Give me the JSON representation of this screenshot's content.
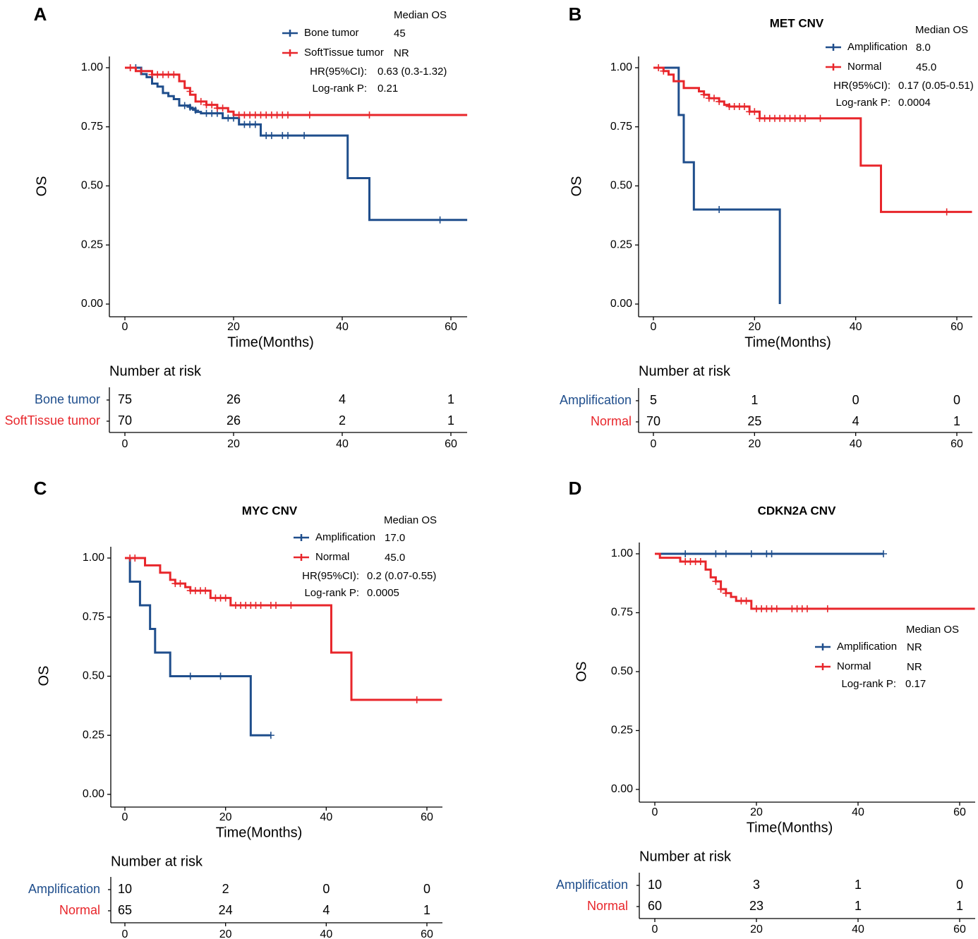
{
  "figure": {
    "colors": {
      "blue": "#1f4e8c",
      "red": "#e8262b",
      "axis": "#000000"
    },
    "common": {
      "xlabel": "Time(Months)",
      "ylabel": "OS",
      "risk_title": "Number at risk",
      "median_header": "Median OS",
      "hr_label": "HR(95%CI):",
      "p_label": "Log-rank P:"
    }
  },
  "chart_data": [
    {
      "panel": "A",
      "type": "line",
      "title": "",
      "xlabel": "Time(Months)",
      "ylabel": "OS",
      "xlim": [
        0,
        63
      ],
      "ylim": [
        0,
        1
      ],
      "xticks": [
        0,
        20,
        40,
        60
      ],
      "yticks": [
        "0.00",
        "0.25",
        "0.50",
        "0.75",
        "1.00"
      ],
      "median_header": "Median OS",
      "hr": "0.63 (0.3-1.32)",
      "p": "0.21",
      "series": [
        {
          "name": "Bone tumor",
          "color": "blue",
          "median": "45",
          "steps": [
            [
              0,
              1
            ],
            [
              3,
              0.973
            ],
            [
              4,
              0.96
            ],
            [
              5,
              0.933
            ],
            [
              6,
              0.92
            ],
            [
              7,
              0.893
            ],
            [
              8,
              0.88
            ],
            [
              9,
              0.867
            ],
            [
              10,
              0.84
            ],
            [
              12,
              0.827
            ],
            [
              13,
              0.813
            ],
            [
              14,
              0.807
            ],
            [
              18,
              0.787
            ],
            [
              21,
              0.76
            ],
            [
              25,
              0.713
            ],
            [
              41,
              0.533
            ],
            [
              45,
              0.356
            ],
            [
              63,
              0.356
            ]
          ],
          "censors": [
            [
              1,
              1
            ],
            [
              2,
              1
            ],
            [
              11,
              0.84
            ],
            [
              12,
              0.833
            ],
            [
              13,
              0.82
            ],
            [
              15,
              0.807
            ],
            [
              16,
              0.807
            ],
            [
              17,
              0.807
            ],
            [
              19,
              0.787
            ],
            [
              20,
              0.787
            ],
            [
              22,
              0.76
            ],
            [
              23,
              0.76
            ],
            [
              24,
              0.76
            ],
            [
              26,
              0.713
            ],
            [
              27,
              0.713
            ],
            [
              29,
              0.713
            ],
            [
              30,
              0.713
            ],
            [
              33,
              0.713
            ],
            [
              58,
              0.356
            ]
          ],
          "risk": [
            "75",
            "26",
            "4",
            "1"
          ]
        },
        {
          "name": "SoftTissue tumor",
          "color": "red",
          "median": "NR",
          "steps": [
            [
              0,
              1
            ],
            [
              2,
              0.986
            ],
            [
              5,
              0.971
            ],
            [
              10,
              0.943
            ],
            [
              11,
              0.914
            ],
            [
              12,
              0.886
            ],
            [
              13,
              0.857
            ],
            [
              15,
              0.843
            ],
            [
              17,
              0.829
            ],
            [
              19,
              0.814
            ],
            [
              20,
              0.8
            ],
            [
              63,
              0.8
            ]
          ],
          "censors": [
            [
              1,
              1
            ],
            [
              3,
              0.986
            ],
            [
              5,
              0.971
            ],
            [
              6,
              0.971
            ],
            [
              7,
              0.971
            ],
            [
              8,
              0.971
            ],
            [
              9,
              0.971
            ],
            [
              12,
              0.9
            ],
            [
              14,
              0.857
            ],
            [
              15,
              0.843
            ],
            [
              16,
              0.843
            ],
            [
              17,
              0.829
            ],
            [
              18,
              0.829
            ],
            [
              21,
              0.8
            ],
            [
              22,
              0.8
            ],
            [
              23,
              0.8
            ],
            [
              24,
              0.8
            ],
            [
              25,
              0.8
            ],
            [
              26,
              0.8
            ],
            [
              27,
              0.8
            ],
            [
              28,
              0.8
            ],
            [
              29,
              0.8
            ],
            [
              30,
              0.8
            ],
            [
              34,
              0.8
            ],
            [
              45,
              0.8
            ]
          ],
          "risk": [
            "70",
            "26",
            "2",
            "1"
          ]
        }
      ]
    },
    {
      "panel": "B",
      "type": "line",
      "title": "MET CNV",
      "xlabel": "Time(Months)",
      "ylabel": "OS",
      "xlim": [
        0,
        63
      ],
      "ylim": [
        0,
        1
      ],
      "xticks": [
        0,
        20,
        40,
        60
      ],
      "yticks": [
        "0.00",
        "0.25",
        "0.50",
        "0.75",
        "1.00"
      ],
      "median_header": "Median OS",
      "hr": "0.17 (0.05-0.51)",
      "p": "0.0004",
      "series": [
        {
          "name": "Amplification",
          "color": "blue",
          "median": "8.0",
          "steps": [
            [
              0,
              1
            ],
            [
              5,
              0.8
            ],
            [
              6,
              0.6
            ],
            [
              8,
              0.4
            ],
            [
              25,
              0.4
            ],
            [
              25,
              0
            ]
          ],
          "censors": [
            [
              13,
              0.4
            ]
          ],
          "risk": [
            "5",
            "1",
            "0",
            "0"
          ]
        },
        {
          "name": "Normal",
          "color": "red",
          "median": "45.0",
          "steps": [
            [
              0,
              1
            ],
            [
              2,
              0.986
            ],
            [
              3,
              0.971
            ],
            [
              4,
              0.943
            ],
            [
              6,
              0.914
            ],
            [
              9,
              0.9
            ],
            [
              10,
              0.886
            ],
            [
              11,
              0.871
            ],
            [
              13,
              0.857
            ],
            [
              14,
              0.843
            ],
            [
              15,
              0.836
            ],
            [
              19,
              0.814
            ],
            [
              21,
              0.786
            ],
            [
              41,
              0.586
            ],
            [
              45,
              0.39
            ],
            [
              63,
              0.39
            ]
          ],
          "censors": [
            [
              1,
              1
            ],
            [
              2,
              0.986
            ],
            [
              10,
              0.886
            ],
            [
              11,
              0.871
            ],
            [
              12,
              0.871
            ],
            [
              13,
              0.857
            ],
            [
              15,
              0.836
            ],
            [
              16,
              0.836
            ],
            [
              17,
              0.836
            ],
            [
              18,
              0.836
            ],
            [
              19,
              0.814
            ],
            [
              20,
              0.814
            ],
            [
              21,
              0.786
            ],
            [
              22,
              0.786
            ],
            [
              23,
              0.786
            ],
            [
              24,
              0.786
            ],
            [
              25,
              0.786
            ],
            [
              26,
              0.786
            ],
            [
              27,
              0.786
            ],
            [
              28,
              0.786
            ],
            [
              29,
              0.786
            ],
            [
              30,
              0.786
            ],
            [
              33,
              0.786
            ],
            [
              58,
              0.39
            ]
          ],
          "risk": [
            "70",
            "25",
            "4",
            "1"
          ]
        }
      ]
    },
    {
      "panel": "C",
      "type": "line",
      "title": "MYC CNV",
      "xlabel": "Time(Months)",
      "ylabel": "OS",
      "xlim": [
        0,
        63
      ],
      "ylim": [
        0,
        1
      ],
      "xticks": [
        0,
        20,
        40,
        60
      ],
      "yticks": [
        "0.00",
        "0.25",
        "0.50",
        "0.75",
        "1.00"
      ],
      "median_header": "Median OS",
      "hr": "0.2 (0.07-0.55)",
      "p": "0.0005",
      "series": [
        {
          "name": "Amplification",
          "color": "blue",
          "median": "17.0",
          "steps": [
            [
              0,
              1
            ],
            [
              1,
              0.9
            ],
            [
              3,
              0.8
            ],
            [
              5,
              0.7
            ],
            [
              6,
              0.6
            ],
            [
              9,
              0.5
            ],
            [
              25,
              0.25
            ],
            [
              29,
              0.25
            ]
          ],
          "censors": [
            [
              13,
              0.5
            ],
            [
              19,
              0.5
            ],
            [
              29,
              0.25
            ]
          ],
          "risk": [
            "10",
            "2",
            "0",
            "0"
          ]
        },
        {
          "name": "Normal",
          "color": "red",
          "median": "45.0",
          "steps": [
            [
              0,
              1
            ],
            [
              4,
              0.969
            ],
            [
              7,
              0.938
            ],
            [
              9,
              0.908
            ],
            [
              10,
              0.892
            ],
            [
              12,
              0.877
            ],
            [
              13,
              0.862
            ],
            [
              17,
              0.831
            ],
            [
              21,
              0.8
            ],
            [
              41,
              0.6
            ],
            [
              45,
              0.4
            ],
            [
              63,
              0.4
            ]
          ],
          "censors": [
            [
              1,
              1
            ],
            [
              2,
              1
            ],
            [
              10,
              0.892
            ],
            [
              11,
              0.892
            ],
            [
              13,
              0.862
            ],
            [
              14,
              0.862
            ],
            [
              15,
              0.862
            ],
            [
              16,
              0.862
            ],
            [
              18,
              0.831
            ],
            [
              19,
              0.831
            ],
            [
              20,
              0.831
            ],
            [
              22,
              0.8
            ],
            [
              23,
              0.8
            ],
            [
              24,
              0.8
            ],
            [
              25,
              0.8
            ],
            [
              26,
              0.8
            ],
            [
              27,
              0.8
            ],
            [
              29,
              0.8
            ],
            [
              30,
              0.8
            ],
            [
              33,
              0.8
            ],
            [
              58,
              0.4
            ]
          ],
          "risk": [
            "65",
            "24",
            "4",
            "1"
          ]
        }
      ]
    },
    {
      "panel": "D",
      "type": "line",
      "title": "CDKN2A CNV",
      "xlabel": "Time(Months)",
      "ylabel": "OS",
      "xlim": [
        0,
        63
      ],
      "ylim": [
        0,
        1
      ],
      "xticks": [
        0,
        20,
        40,
        60
      ],
      "yticks": [
        "0.00",
        "0.25",
        "0.50",
        "0.75",
        "1.00"
      ],
      "median_header": "Median OS",
      "hr": "",
      "p": "0.17",
      "series": [
        {
          "name": "Amplification",
          "color": "blue",
          "median": "NR",
          "steps": [
            [
              0,
              1
            ],
            [
              45,
              1
            ]
          ],
          "censors": [
            [
              6,
              1
            ],
            [
              12,
              1
            ],
            [
              14,
              1
            ],
            [
              19,
              1
            ],
            [
              22,
              1
            ],
            [
              23,
              1
            ],
            [
              45,
              1
            ]
          ],
          "risk": [
            "10",
            "3",
            "1",
            "0"
          ]
        },
        {
          "name": "Normal",
          "color": "red",
          "median": "NR",
          "steps": [
            [
              0,
              1
            ],
            [
              1,
              0.983
            ],
            [
              5,
              0.967
            ],
            [
              10,
              0.933
            ],
            [
              11,
              0.9
            ],
            [
              12,
              0.883
            ],
            [
              13,
              0.85
            ],
            [
              14,
              0.833
            ],
            [
              15,
              0.817
            ],
            [
              16,
              0.8
            ],
            [
              19,
              0.767
            ],
            [
              63,
              0.767
            ]
          ],
          "censors": [
            [
              6,
              0.967
            ],
            [
              7,
              0.967
            ],
            [
              8,
              0.967
            ],
            [
              9,
              0.967
            ],
            [
              12,
              0.883
            ],
            [
              13,
              0.85
            ],
            [
              14,
              0.833
            ],
            [
              17,
              0.8
            ],
            [
              18,
              0.8
            ],
            [
              20,
              0.767
            ],
            [
              21,
              0.767
            ],
            [
              22,
              0.767
            ],
            [
              23,
              0.767
            ],
            [
              24,
              0.767
            ],
            [
              27,
              0.767
            ],
            [
              28,
              0.767
            ],
            [
              29,
              0.767
            ],
            [
              30,
              0.767
            ],
            [
              34,
              0.767
            ]
          ],
          "risk": [
            "60",
            "23",
            "1",
            "1"
          ]
        }
      ]
    }
  ]
}
